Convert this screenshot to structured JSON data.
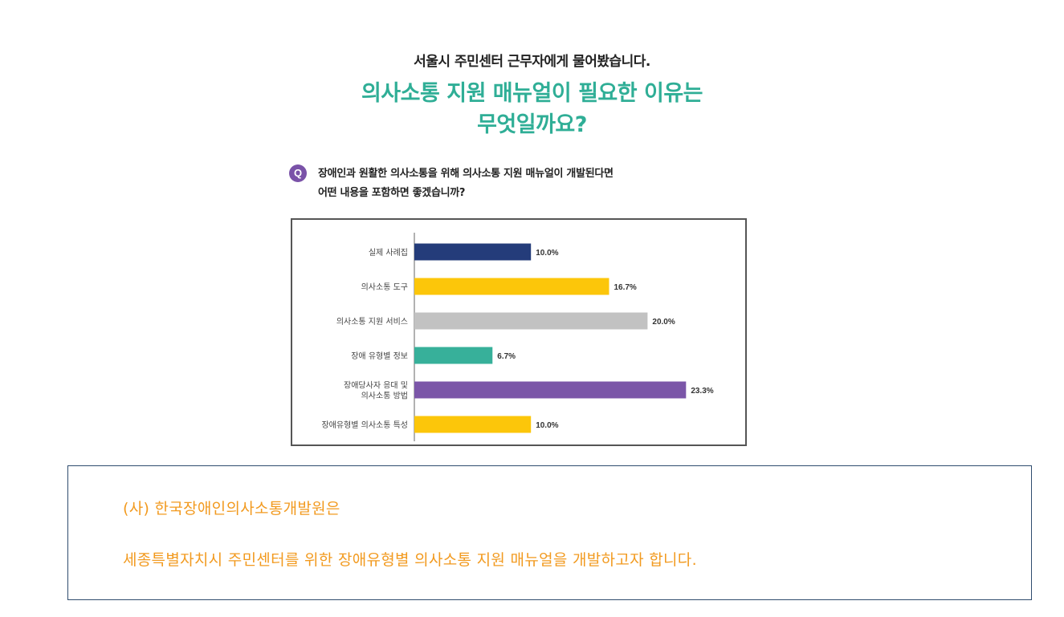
{
  "header": {
    "subtitle": "서울시 주민센터 근무자에게 물어봤습니다.",
    "title_lines": [
      "의사소통 지원 매뉴얼이 필요한 이유는",
      "무엇일까요?"
    ]
  },
  "question": {
    "badge": "Q",
    "lines": [
      "장애인과 원활한 의사소통을 위해 의사소통 지원 매뉴얼이 개발된다면",
      "어떤 내용을 포함하면 좋겠습니까?"
    ]
  },
  "chart_data": {
    "type": "bar",
    "orientation": "horizontal",
    "categories": [
      "실제 사례집",
      "의사소통 도구",
      "의사소통 지원 서비스",
      "장애 유형별 정보",
      "장애당사자 응대 및 의사소통 방법",
      "장애유형별 의사소통 특성"
    ],
    "category_lines": [
      [
        "실제 사례집"
      ],
      [
        "의사소통 도구"
      ],
      [
        "의사소통 지원 서비스"
      ],
      [
        "장애 유형별 정보"
      ],
      [
        "장애당사자 응대 및",
        "의사소통 방법"
      ],
      [
        "장애유형별 의사소통 특성"
      ]
    ],
    "values": [
      10.0,
      16.7,
      20.0,
      6.7,
      23.3,
      10.0
    ],
    "value_labels": [
      "10.0%",
      "16.7%",
      "20.0%",
      "6.7%",
      "23.3%",
      "10.0%"
    ],
    "unit": "%",
    "bar_colors": [
      "#243c7a",
      "#fcc60a",
      "#c2c2c2",
      "#37b09a",
      "#7b56a8",
      "#fcc60a"
    ],
    "xlim": [
      0,
      25
    ],
    "grid": false,
    "legend": "none"
  },
  "info": {
    "line1": "(사) 한국장애인의사소통개발원은",
    "line2": "세종특별자치시 주민센터를 위한 장애유형별 의사소통 지원 매뉴얼을 개발하고자 합니다."
  },
  "colors": {
    "title_green": "#2fae96",
    "badge_purple": "#7a52a8",
    "info_orange": "#f29a1f",
    "info_border": "#2f4c6e"
  }
}
